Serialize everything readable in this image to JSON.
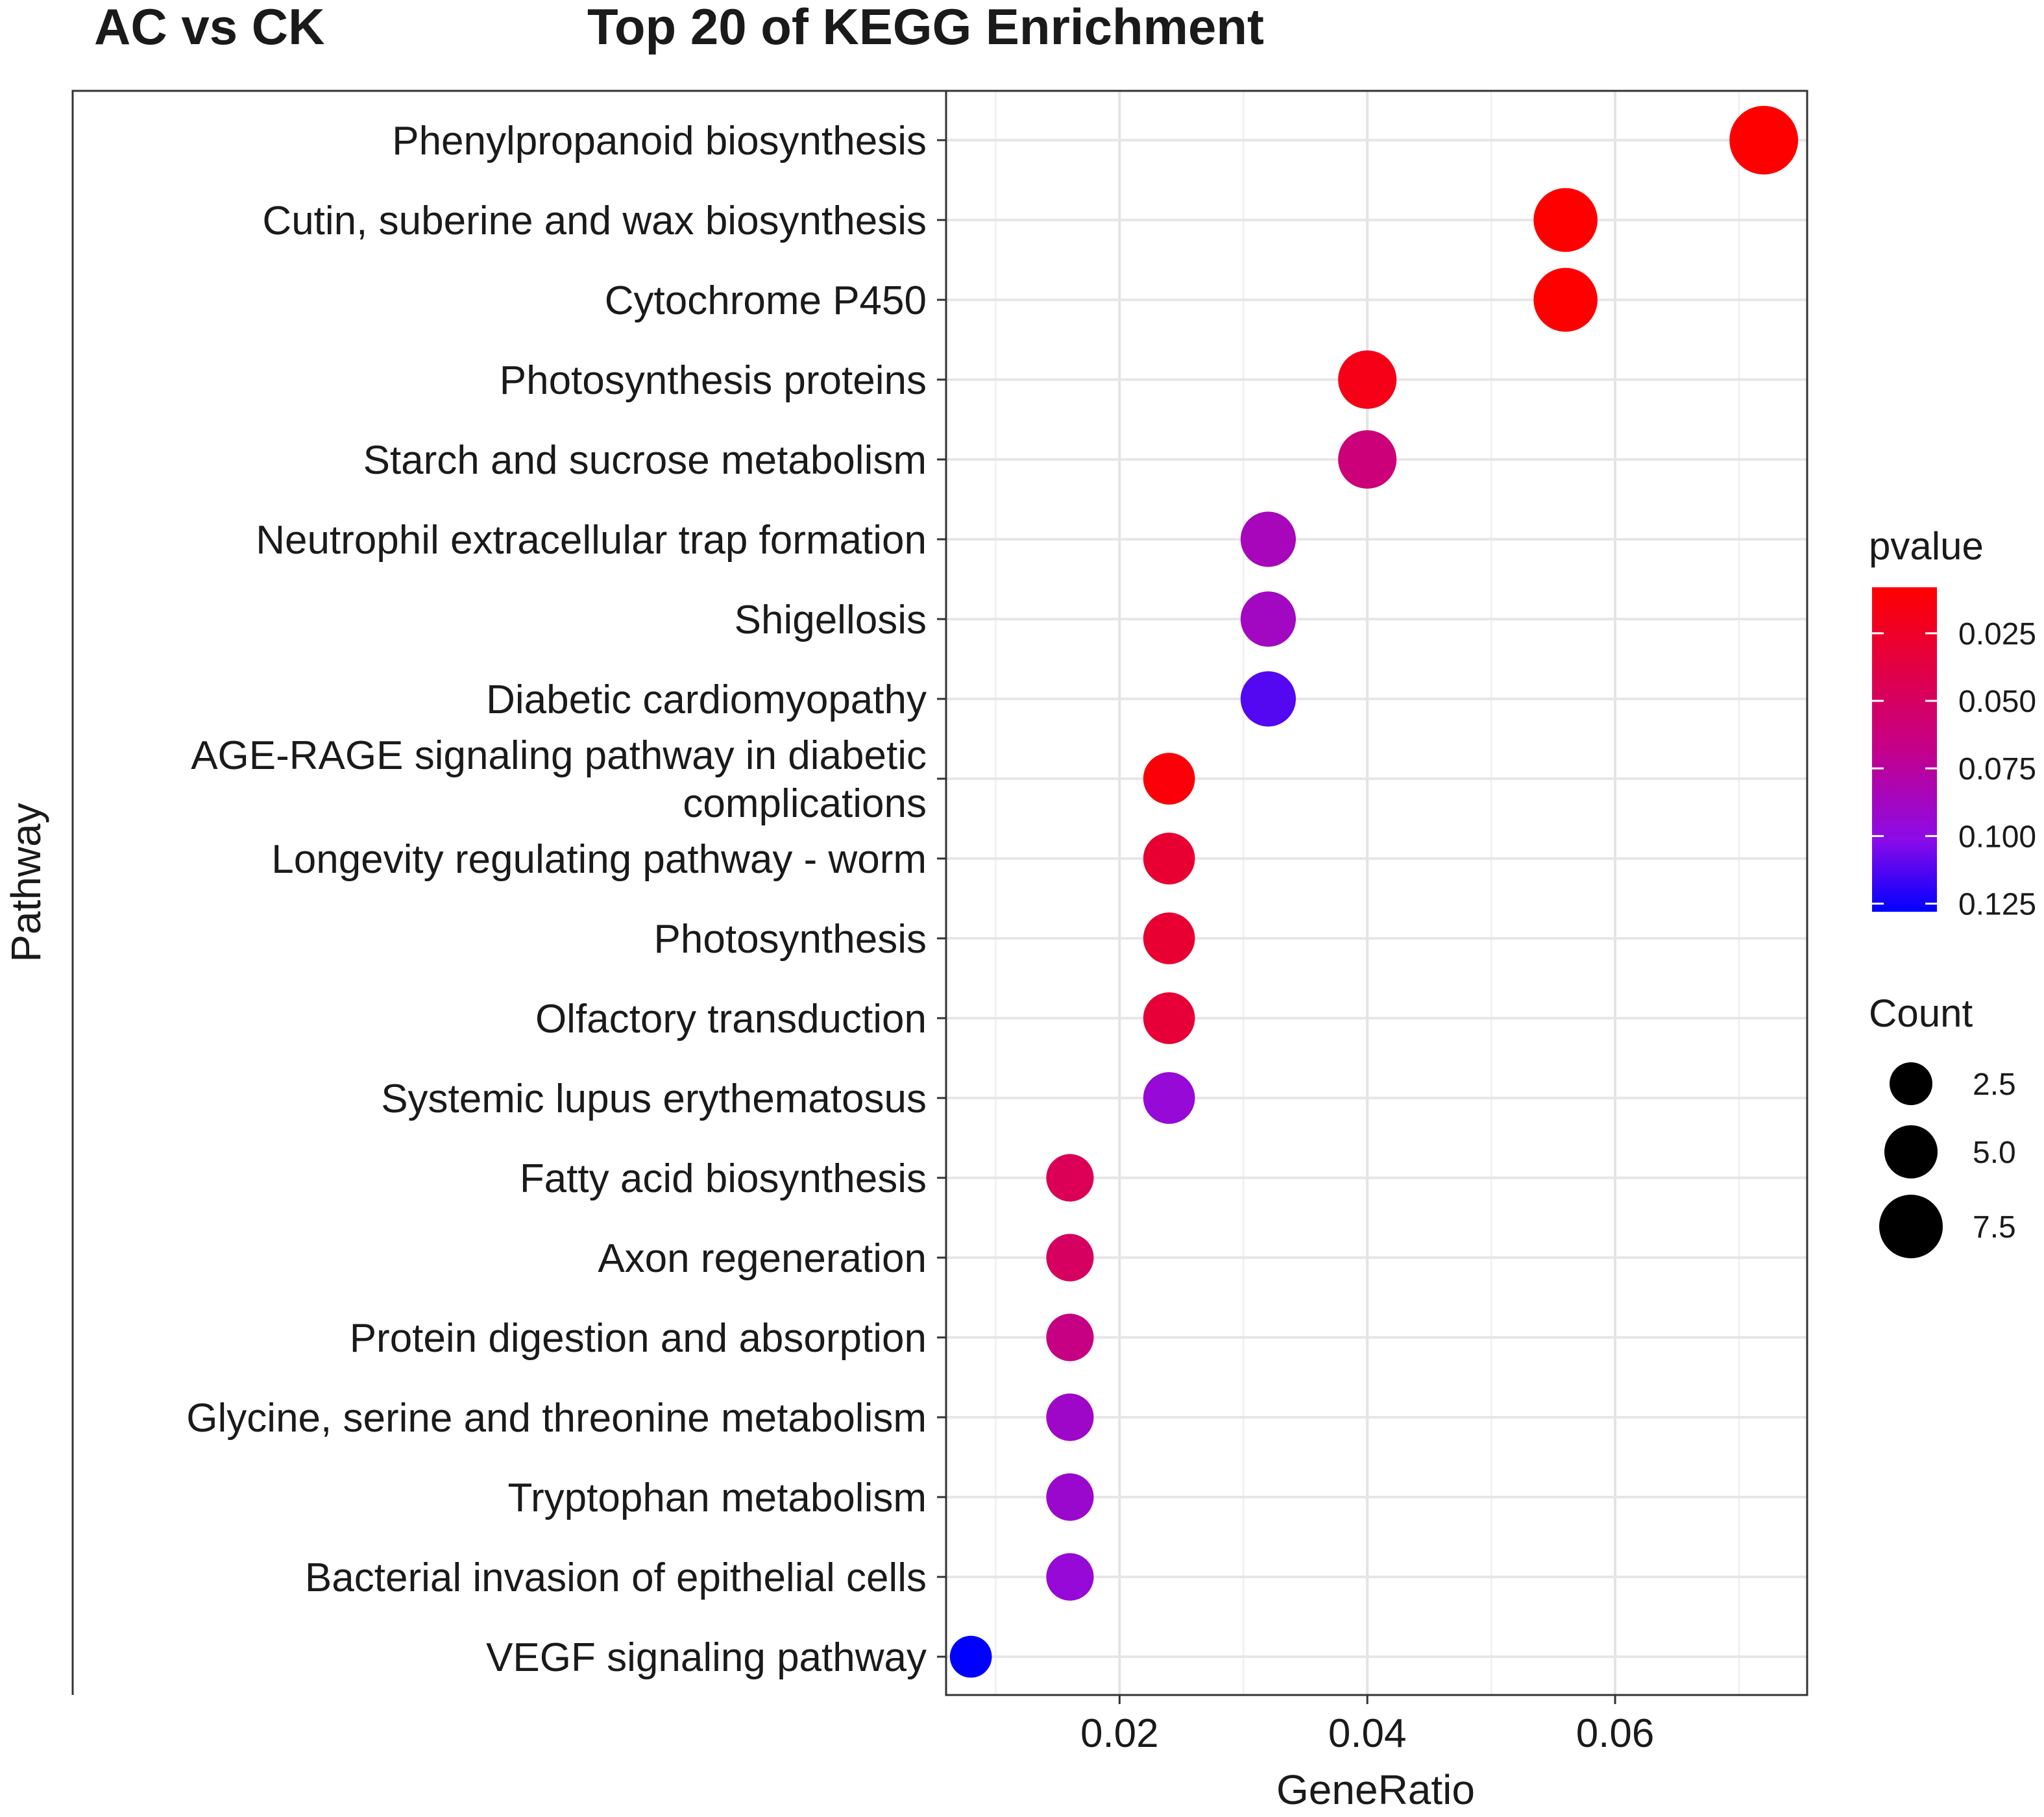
{
  "chart_data": {
    "type": "scatter",
    "subtitle": "AC vs CK",
    "title": "Top 20 of KEGG Enrichment",
    "xlabel": "GeneRatio",
    "ylabel": "Pathway",
    "xlim": [
      0.006,
      0.0755
    ],
    "xticks": [
      {
        "value": 0.02,
        "label": "0.02"
      },
      {
        "value": 0.04,
        "label": "0.04"
      },
      {
        "value": 0.06,
        "label": "0.06"
      }
    ],
    "grid": true,
    "color_legend": {
      "title": "pvalue",
      "range": [
        0.008,
        0.128
      ],
      "ticks": [
        {
          "value": 0.025,
          "label": "0.025"
        },
        {
          "value": 0.05,
          "label": "0.050"
        },
        {
          "value": 0.075,
          "label": "0.075"
        },
        {
          "value": 0.1,
          "label": "0.100"
        },
        {
          "value": 0.125,
          "label": "0.125"
        }
      ],
      "low_color": "#ff0000",
      "mid_color": "#8b0be8",
      "high_color": "#0000ff"
    },
    "size_legend": {
      "title": "Count",
      "items": [
        {
          "value": 2.5,
          "label": "2.5"
        },
        {
          "value": 5.0,
          "label": "5.0"
        },
        {
          "value": 7.5,
          "label": "7.5"
        }
      ]
    },
    "points": [
      {
        "pathway": [
          "Phenylpropanoid biosynthesis"
        ],
        "gene_ratio": 0.072,
        "count": 9,
        "pvalue": 0.005
      },
      {
        "pathway": [
          "Cutin, suberine and wax biosynthesis"
        ],
        "gene_ratio": 0.056,
        "count": 7,
        "pvalue": 0.006
      },
      {
        "pathway": [
          "Cytochrome P450"
        ],
        "gene_ratio": 0.056,
        "count": 7,
        "pvalue": 0.006
      },
      {
        "pathway": [
          "Photosynthesis proteins"
        ],
        "gene_ratio": 0.04,
        "count": 5,
        "pvalue": 0.018
      },
      {
        "pathway": [
          "Starch and sucrose metabolism"
        ],
        "gene_ratio": 0.04,
        "count": 5,
        "pvalue": 0.06
      },
      {
        "pathway": [
          "Neutrophil extracellular trap formation"
        ],
        "gene_ratio": 0.032,
        "count": 4,
        "pvalue": 0.085
      },
      {
        "pathway": [
          "Shigellosis"
        ],
        "gene_ratio": 0.032,
        "count": 4,
        "pvalue": 0.088
      },
      {
        "pathway": [
          "Diabetic cardiomyopathy"
        ],
        "gene_ratio": 0.032,
        "count": 4,
        "pvalue": 0.112
      },
      {
        "pathway": [
          "AGE-RAGE signaling pathway in diabetic",
          "complications"
        ],
        "gene_ratio": 0.024,
        "count": 3,
        "pvalue": 0.012
      },
      {
        "pathway": [
          "Longevity regulating pathway - worm"
        ],
        "gene_ratio": 0.024,
        "count": 3,
        "pvalue": 0.03
      },
      {
        "pathway": [
          "Photosynthesis"
        ],
        "gene_ratio": 0.024,
        "count": 3,
        "pvalue": 0.03
      },
      {
        "pathway": [
          "Olfactory transduction"
        ],
        "gene_ratio": 0.024,
        "count": 3,
        "pvalue": 0.032
      },
      {
        "pathway": [
          "Systemic lupus erythematosus"
        ],
        "gene_ratio": 0.024,
        "count": 3,
        "pvalue": 0.095
      },
      {
        "pathway": [
          "Fatty acid biosynthesis"
        ],
        "gene_ratio": 0.016,
        "count": 2,
        "pvalue": 0.045
      },
      {
        "pathway": [
          "Axon regeneration"
        ],
        "gene_ratio": 0.016,
        "count": 2,
        "pvalue": 0.05
      },
      {
        "pathway": [
          "Protein digestion and absorption"
        ],
        "gene_ratio": 0.016,
        "count": 2,
        "pvalue": 0.065
      },
      {
        "pathway": [
          "Glycine, serine and threonine metabolism"
        ],
        "gene_ratio": 0.016,
        "count": 2,
        "pvalue": 0.09
      },
      {
        "pathway": [
          "Tryptophan metabolism"
        ],
        "gene_ratio": 0.016,
        "count": 2,
        "pvalue": 0.092
      },
      {
        "pathway": [
          "Bacterial invasion of epithelial cells"
        ],
        "gene_ratio": 0.016,
        "count": 2,
        "pvalue": 0.095
      },
      {
        "pathway": [
          "VEGF signaling pathway"
        ],
        "gene_ratio": 0.008,
        "count": 1,
        "pvalue": 0.128
      }
    ]
  }
}
